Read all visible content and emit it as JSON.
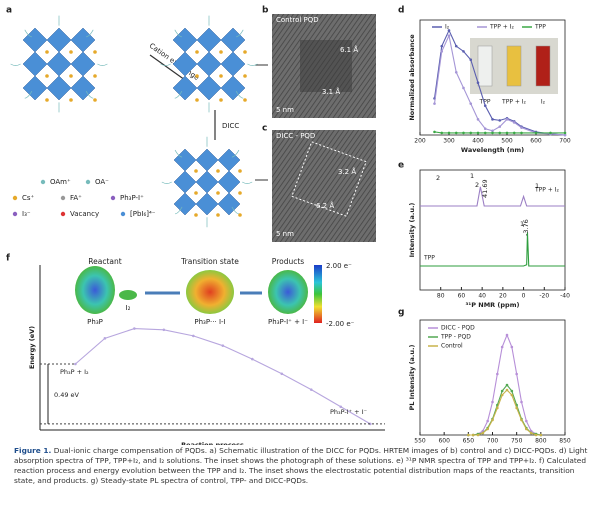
{
  "panel_labels": [
    "a",
    "b",
    "c",
    "d",
    "e",
    "f",
    "g"
  ],
  "schematic": {
    "arrow_top": "Cation exchange",
    "arrow_down": "DICC",
    "legend": [
      "OAm⁺",
      "OA⁻",
      "Cs⁺",
      "FA⁺",
      "Ph₃P-I⁺",
      "I₃⁻",
      "Vacancy",
      "[PbI₆]⁴⁻"
    ]
  },
  "tem": {
    "b": {
      "title": "Control PQD",
      "spacings": [
        "6.1 Å",
        "3.1 Å"
      ],
      "scale": "5 nm"
    },
    "c": {
      "title": "DICC - PQD",
      "spacings": [
        "3.2 Å",
        "6.2 Å"
      ],
      "scale": "5 nm"
    }
  },
  "inset_d": [
    "TPP",
    "TPP + I₂",
    "I₂"
  ],
  "inset_f": {
    "titles": [
      "Reactant",
      "Transition state",
      "Products"
    ],
    "scale": [
      "2.00 e⁻",
      "-2.00 e⁻"
    ],
    "molecules": [
      "Ph₃P",
      "I₂",
      "Ph₃P··· I-I",
      "Ph₃P-I⁺ + I⁻"
    ]
  },
  "chart_data": [
    {
      "type": "line",
      "xlabel": "Wavelength (nm)",
      "ylabel": "Normalized absorbance",
      "legend": "top",
      "markers": true,
      "axes": "box",
      "x": [
        250,
        275,
        300,
        325,
        350,
        375,
        400,
        425,
        450,
        475,
        500,
        525,
        550,
        600,
        650,
        700
      ],
      "xlim": [
        200,
        700
      ],
      "xticks": [
        200,
        300,
        400,
        500,
        600,
        700
      ],
      "ylim": [
        0,
        1.1
      ],
      "series": [
        {
          "name": "I₂",
          "color": "#5b5fb0",
          "values": [
            0.35,
            0.85,
            1.0,
            0.85,
            0.8,
            0.72,
            0.5,
            0.28,
            0.15,
            0.14,
            0.16,
            0.13,
            0.08,
            0.03,
            0.01,
            0
          ]
        },
        {
          "name": "TPP + I₂",
          "color": "#a596d6",
          "values": [
            0.3,
            0.8,
            0.95,
            0.6,
            0.45,
            0.3,
            0.15,
            0.06,
            0.04,
            0.08,
            0.15,
            0.12,
            0.07,
            0.02,
            0.01,
            0
          ]
        },
        {
          "name": "TPP",
          "color": "#3aa845",
          "values": [
            0.03,
            0.02,
            0.02,
            0.02,
            0.02,
            0.02,
            0.02,
            0.02,
            0.02,
            0.02,
            0.02,
            0.02,
            0.02,
            0.02,
            0.02,
            0.02
          ]
        }
      ]
    },
    {
      "type": "line",
      "xlabel": "³¹P NMR (ppm)",
      "ylabel": "Intensity (a.u.)",
      "axes": "box",
      "x": [
        100,
        80,
        60,
        45,
        41.69,
        38,
        20,
        3,
        0,
        -3,
        -3.76,
        -5,
        -20,
        -40
      ],
      "xlim": [
        100,
        -40
      ],
      "xticks": [
        80,
        60,
        40,
        20,
        0,
        -20,
        -40
      ],
      "ylim": [
        0,
        10
      ],
      "series": [
        {
          "name": "TPP + I₂",
          "color": "#9b7fc4",
          "values": [
            7,
            7,
            7,
            7,
            8.6,
            7,
            7,
            7,
            7.8,
            7,
            7,
            7,
            7,
            7
          ]
        },
        {
          "name": "TPP",
          "color": "#2e9e3e",
          "values": [
            2,
            2,
            2,
            2,
            2,
            2,
            2,
            2,
            2,
            2.1,
            4.8,
            2,
            2,
            2
          ]
        }
      ],
      "annotations": [
        "2",
        "1",
        "41.69",
        "2",
        "1",
        "-3.76",
        "1"
      ]
    },
    {
      "type": "line",
      "xlabel": "Reaction process",
      "ylabel": "Energy (eV)",
      "markers": true,
      "axes": "left-bottom",
      "x": [
        0,
        0.1,
        0.2,
        0.3,
        0.4,
        0.5,
        0.6,
        0.7,
        0.8,
        0.9,
        1
      ],
      "xlim": [
        -0.12,
        1.05
      ],
      "ylim": [
        -0.05,
        1.3
      ],
      "series": [
        {
          "color": "#b7a6de",
          "values": [
            0.49,
            0.7,
            0.78,
            0.77,
            0.72,
            0.64,
            0.53,
            0.41,
            0.28,
            0.14,
            0
          ]
        }
      ],
      "annotations": [
        "Ph₃P + I₂",
        "0.49 eV",
        "Ph₃P-I⁺ + I⁻"
      ]
    },
    {
      "type": "line",
      "xlabel": "Wavelength (nm)",
      "ylabel": "PL Intensity (a.u.)",
      "legend": "upper left",
      "markers": true,
      "axes": "box",
      "x": [
        650,
        660,
        670,
        680,
        690,
        700,
        710,
        720,
        730,
        740,
        750,
        760,
        770,
        780,
        790,
        800
      ],
      "xlim": [
        550,
        850
      ],
      "xticks": [
        550,
        600,
        650,
        700,
        750,
        800,
        850
      ],
      "ylim": [
        0,
        1.15
      ],
      "series": [
        {
          "name": "DICC - PQD",
          "color": "#b78fd8",
          "values": [
            0,
            0,
            0.01,
            0.04,
            0.14,
            0.33,
            0.61,
            0.88,
            1.0,
            0.88,
            0.61,
            0.33,
            0.14,
            0.04,
            0.01,
            0
          ]
        },
        {
          "name": "TPP - PQD",
          "color": "#52a852",
          "values": [
            0,
            0,
            0.01,
            0.02,
            0.07,
            0.16,
            0.3,
            0.44,
            0.5,
            0.44,
            0.3,
            0.16,
            0.07,
            0.02,
            0.01,
            0
          ]
        },
        {
          "name": "Control",
          "color": "#c8b24a",
          "values": [
            0,
            0,
            0,
            0.02,
            0.06,
            0.15,
            0.27,
            0.4,
            0.45,
            0.4,
            0.27,
            0.15,
            0.06,
            0.02,
            0,
            0
          ]
        }
      ]
    }
  ],
  "caption": {
    "label": "Figure 1.",
    "text": "Dual-ionic charge compensation of PQDs. a) Schematic illustration of the DICC for PQDs. HRTEM images of b) control and c) DICC-PQDs. d) Light absorption spectra of TPP, TPP+I₂, and I₂ solutions. The inset shows the photograph of these solutions. e) ³¹P NMR spectra of TPP and TPP+I₂. f) Calculated reaction process and energy evolution between the TPP and I₂. The inset shows the electrostatic potential distribution maps of the reactants, transition state, and products. g) Steady-state PL spectra of control, TPP- and DICC-PQDs."
  }
}
